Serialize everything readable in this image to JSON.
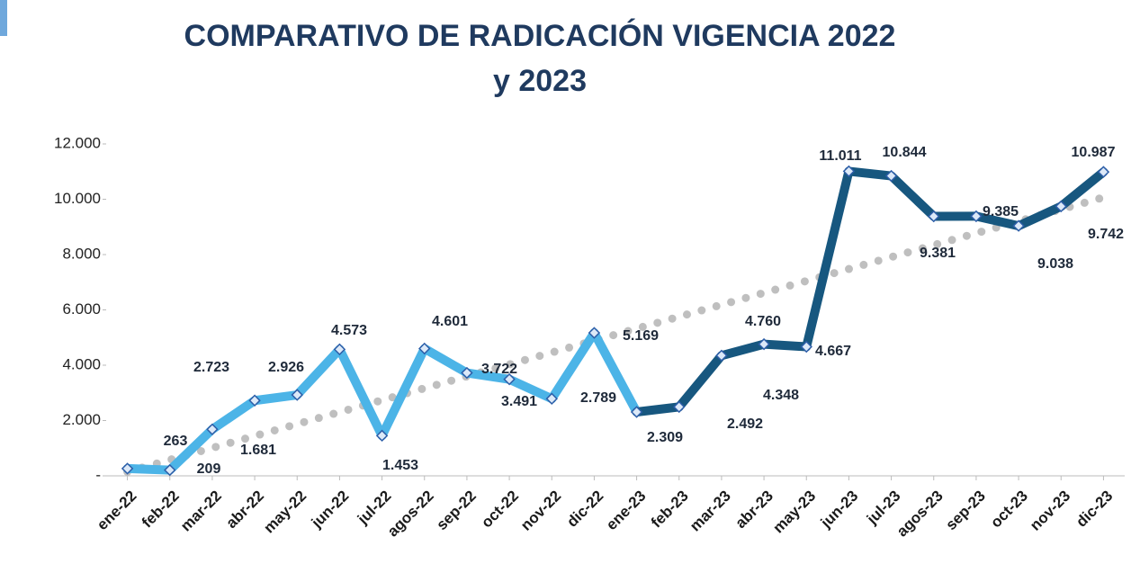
{
  "chart_data": {
    "type": "line",
    "title": [
      "COMPARATIVO  DE RADICACIÓN VIGENCIA  2022",
      "y 2023"
    ],
    "categories": [
      "ene-22",
      "feb-22",
      "mar-22",
      "abr-22",
      "may-22",
      "jun-22",
      "jul-22",
      "agos-22",
      "sep-22",
      "oct-22",
      "nov-22",
      "dic-22",
      "ene-23",
      "feb-23",
      "mar-23",
      "abr-23",
      "may-23",
      "jun-23",
      "jul-23",
      "agos-23",
      "sep-23",
      "oct-23",
      "nov-23",
      "dic-23"
    ],
    "values": [
      263,
      209,
      1681,
      2723,
      2926,
      4573,
      1453,
      4601,
      3722,
      3491,
      2789,
      5169,
      2309,
      2492,
      4348,
      4760,
      4667,
      11011,
      10844,
      9381,
      9385,
      9038,
      9742,
      10987
    ],
    "value_labels": [
      "263",
      "209",
      "1.681",
      "2.723",
      "2.926",
      "4.573",
      "1.453",
      "4.601",
      "3.722",
      "3.491",
      "2.789",
      "5.169",
      "2.309",
      "2.492",
      "4.348",
      "4.760",
      "4.667",
      "11.011",
      "10.844",
      "9.381",
      "9.385",
      "9.038",
      "9.742",
      "10.987"
    ],
    "colors": [
      "#4cb4e7",
      "#4cb4e7",
      "#4cb4e7",
      "#4cb4e7",
      "#4cb4e7",
      "#4cb4e7",
      "#4cb4e7",
      "#4cb4e7",
      "#4cb4e7",
      "#4cb4e7",
      "#4cb4e7",
      "#4cb4e7",
      "#17577f",
      "#17577f",
      "#17577f",
      "#17577f",
      "#17577f",
      "#17577f",
      "#17577f",
      "#17577f",
      "#17577f",
      "#17577f",
      "#17577f",
      "#17577f"
    ],
    "trendline": "linear",
    "trendline_color": "#bfbfbf",
    "ylim": [
      0,
      12000
    ],
    "yticks": [
      {
        "value": 0,
        "label": "-"
      },
      {
        "value": 2000,
        "label": "2.000"
      },
      {
        "value": 4000,
        "label": "4.000"
      },
      {
        "value": 6000,
        "label": "6.000"
      },
      {
        "value": 8000,
        "label": "8.000"
      },
      {
        "value": 10000,
        "label": "10.000"
      },
      {
        "value": 12000,
        "label": "12.000"
      }
    ]
  }
}
